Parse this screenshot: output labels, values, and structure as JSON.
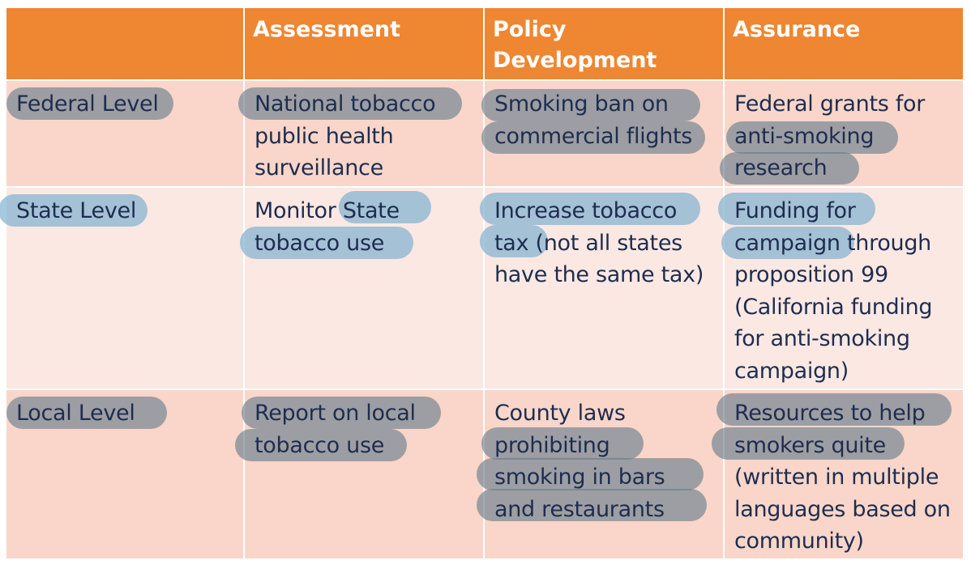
{
  "header": {
    "corner": "",
    "assessment": "Assessment",
    "policy": "Policy\nDevelopment",
    "assurance": "Assurance"
  },
  "rows": [
    {
      "level": "Federal Level",
      "assessment": "National tobacco\npublic health\nsurveillance",
      "policy": "Smoking ban on\ncommercial flights",
      "assurance": "Federal grants for\nanti-smoking\nresearch"
    },
    {
      "level": "State Level",
      "assessment": "Monitor State\ntobacco use",
      "policy": "Increase tobacco\ntax (not all states\nhave the same tax)",
      "assurance": "Funding for\ncampaign through\nproposition 99\n(California funding\nfor anti-smoking\ncampaign)"
    },
    {
      "level": "Local Level",
      "assessment": "Report on local\ntobacco use",
      "policy": "County laws\nprohibiting\nsmoking in bars\nand restaurants",
      "assurance": "Resources to help\nsmokers quite\n(written in multiple\nlanguages based on\ncommunity)"
    }
  ],
  "colors": {
    "header_bg": "#ef8632",
    "row_dark": "#f9d6c9",
    "row_light": "#fbe8e3",
    "text": "#1e2d4f",
    "highlight_gray": "#647d8c",
    "highlight_blue": "#6eaacd"
  }
}
